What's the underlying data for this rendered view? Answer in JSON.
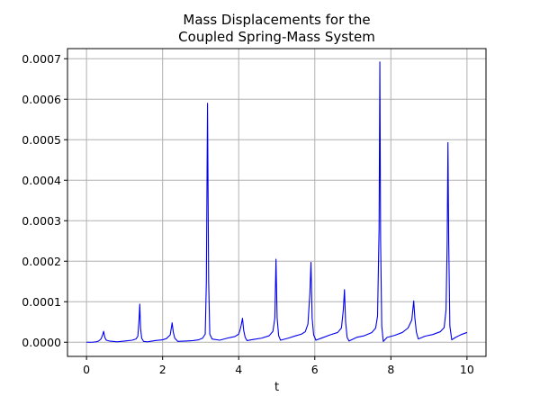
{
  "chart_data": {
    "type": "line",
    "title": [
      "Mass Displacements for the",
      "Coupled Spring-Mass System"
    ],
    "xlabel": "t",
    "ylabel": "",
    "xlim": [
      -0.5,
      10.5
    ],
    "ylim": [
      -3.5e-05,
      0.000725
    ],
    "x_ticks": [
      0,
      2,
      4,
      6,
      8,
      10
    ],
    "x_tick_labels": [
      "0",
      "2",
      "4",
      "6",
      "8",
      "10"
    ],
    "y_ticks": [
      0,
      0.0001,
      0.0002,
      0.0003,
      0.0004,
      0.0005,
      0.0006,
      0.0007
    ],
    "y_tick_labels": [
      "0.0000",
      "0.0001",
      "0.0002",
      "0.0003",
      "0.0004",
      "0.0005",
      "0.0006",
      "0.0007"
    ],
    "grid": true,
    "series": [
      {
        "color": "#0000ee",
        "points": [
          [
            0.0,
            0.0
          ],
          [
            0.15,
            0.0
          ],
          [
            0.25,
            1e-06
          ],
          [
            0.32,
            3e-06
          ],
          [
            0.38,
            8e-06
          ],
          [
            0.42,
            1.7e-05
          ],
          [
            0.45,
            2.7e-05
          ],
          [
            0.48,
            1.2e-05
          ],
          [
            0.52,
            5e-06
          ],
          [
            0.6,
            3e-06
          ],
          [
            0.8,
            1e-06
          ],
          [
            1.0,
            3e-06
          ],
          [
            1.2,
            5e-06
          ],
          [
            1.3,
            8e-06
          ],
          [
            1.35,
            1.5e-05
          ],
          [
            1.38,
            5.5e-05
          ],
          [
            1.4,
            9.4e-05
          ],
          [
            1.42,
            3.5e-05
          ],
          [
            1.45,
            1e-05
          ],
          [
            1.5,
            2e-06
          ],
          [
            1.6,
            1e-06
          ],
          [
            1.8,
            4e-06
          ],
          [
            2.0,
            6e-06
          ],
          [
            2.1,
            9e-06
          ],
          [
            2.2,
            1.8e-05
          ],
          [
            2.25,
            4.8e-05
          ],
          [
            2.28,
            2.5e-05
          ],
          [
            2.32,
            1e-05
          ],
          [
            2.4,
            2e-06
          ],
          [
            2.6,
            3e-06
          ],
          [
            2.8,
            4e-06
          ],
          [
            2.95,
            6e-06
          ],
          [
            3.05,
            1e-05
          ],
          [
            3.12,
            2e-05
          ],
          [
            3.15,
            0.00015
          ],
          [
            3.18,
            0.00059
          ],
          [
            3.21,
            0.00015
          ],
          [
            3.24,
            2e-05
          ],
          [
            3.3,
            8e-06
          ],
          [
            3.5,
            5e-06
          ],
          [
            3.7,
            1e-05
          ],
          [
            3.9,
            1.4e-05
          ],
          [
            4.0,
            2e-05
          ],
          [
            4.05,
            3.5e-05
          ],
          [
            4.1,
            5.9e-05
          ],
          [
            4.13,
            3e-05
          ],
          [
            4.17,
            1.2e-05
          ],
          [
            4.22,
            4e-06
          ],
          [
            4.4,
            7e-06
          ],
          [
            4.6,
            1e-05
          ],
          [
            4.8,
            1.6e-05
          ],
          [
            4.9,
            2.7e-05
          ],
          [
            4.95,
            6e-05
          ],
          [
            4.98,
            0.000205
          ],
          [
            5.01,
            6e-05
          ],
          [
            5.05,
            1.6e-05
          ],
          [
            5.1,
            5e-06
          ],
          [
            5.3,
            1e-05
          ],
          [
            5.5,
            1.6e-05
          ],
          [
            5.65,
            2e-05
          ],
          [
            5.75,
            2.6e-05
          ],
          [
            5.82,
            4.5e-05
          ],
          [
            5.87,
            0.00012
          ],
          [
            5.9,
            0.000197
          ],
          [
            5.93,
            6e-05
          ],
          [
            5.97,
            1.8e-05
          ],
          [
            6.03,
            5e-06
          ],
          [
            6.2,
            1.1e-05
          ],
          [
            6.4,
            1.8e-05
          ],
          [
            6.6,
            2.4e-05
          ],
          [
            6.7,
            3.5e-05
          ],
          [
            6.75,
            8e-05
          ],
          [
            6.78,
            0.00013
          ],
          [
            6.81,
            5e-05
          ],
          [
            6.85,
            1.2e-05
          ],
          [
            6.9,
            3e-06
          ],
          [
            7.1,
            1.2e-05
          ],
          [
            7.3,
            1.6e-05
          ],
          [
            7.5,
            2.4e-05
          ],
          [
            7.6,
            3.5e-05
          ],
          [
            7.65,
            6.5e-05
          ],
          [
            7.69,
            0.00028
          ],
          [
            7.71,
            0.000692
          ],
          [
            7.73,
            0.00025
          ],
          [
            7.76,
            4e-05
          ],
          [
            7.8,
            2e-06
          ],
          [
            7.9,
            1.2e-05
          ],
          [
            8.1,
            1.7e-05
          ],
          [
            8.3,
            2.4e-05
          ],
          [
            8.45,
            3.5e-05
          ],
          [
            8.55,
            5.5e-05
          ],
          [
            8.6,
            0.000102
          ],
          [
            8.63,
            6e-05
          ],
          [
            8.67,
            2.5e-05
          ],
          [
            8.72,
            8e-06
          ],
          [
            8.9,
            1.5e-05
          ],
          [
            9.1,
            1.9e-05
          ],
          [
            9.3,
            2.6e-05
          ],
          [
            9.4,
            3.6e-05
          ],
          [
            9.45,
            8e-05
          ],
          [
            9.48,
            0.00025
          ],
          [
            9.5,
            0.000493
          ],
          [
            9.52,
            0.00025
          ],
          [
            9.55,
            4e-05
          ],
          [
            9.6,
            6e-06
          ],
          [
            9.7,
            1.2e-05
          ],
          [
            9.85,
            1.9e-05
          ],
          [
            10.0,
            2.4e-05
          ]
        ]
      }
    ]
  }
}
